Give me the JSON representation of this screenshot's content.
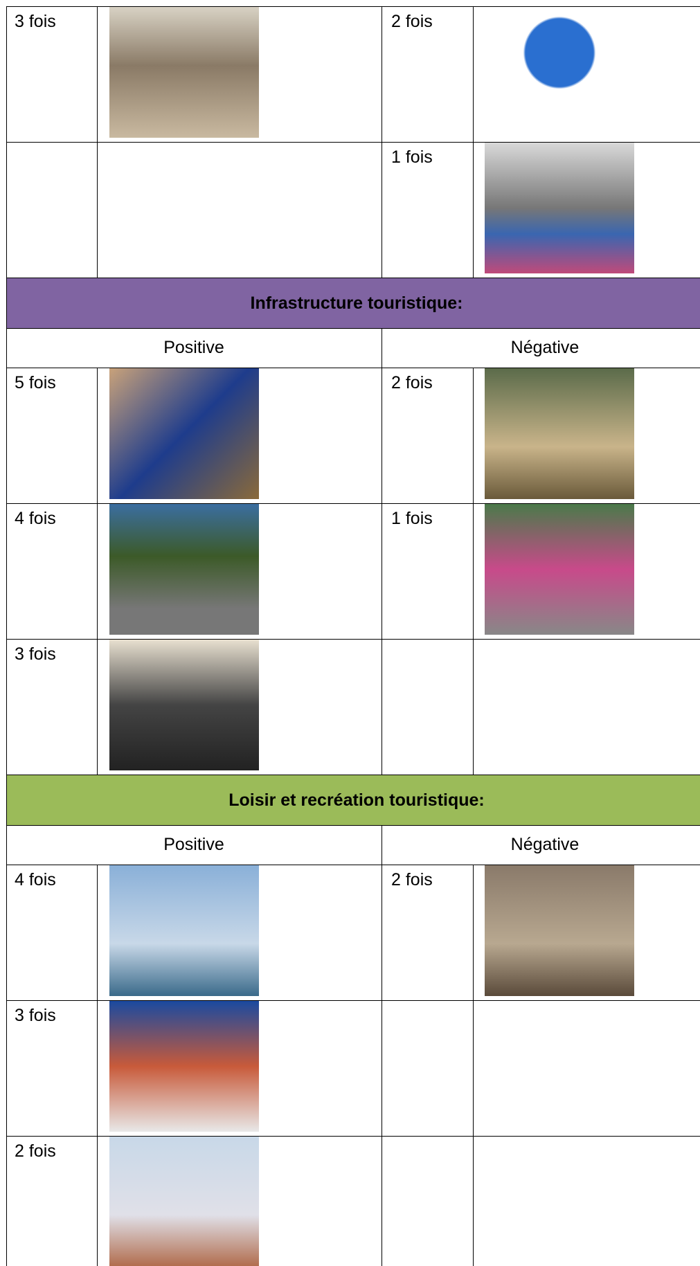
{
  "top_rows": [
    {
      "positive": "3 fois",
      "negative": "2 fois"
    },
    {
      "negative": "1 fois"
    }
  ],
  "sections": [
    {
      "title": "Infrastructure touristique:",
      "positive_label": "Positive",
      "negative_label": "Négative",
      "rows": [
        {
          "positive": "5 fois",
          "negative": "2 fois"
        },
        {
          "positive": "4 fois",
          "negative": "1 fois"
        },
        {
          "positive": "3 fois"
        }
      ]
    },
    {
      "title": "Loisir et recréation touristique:",
      "positive_label": "Positive",
      "negative_label": "Négative",
      "rows": [
        {
          "positive": "4 fois",
          "negative": "2 fois"
        },
        {
          "positive": "3 fois"
        },
        {
          "positive": "2 fois"
        }
      ]
    }
  ]
}
